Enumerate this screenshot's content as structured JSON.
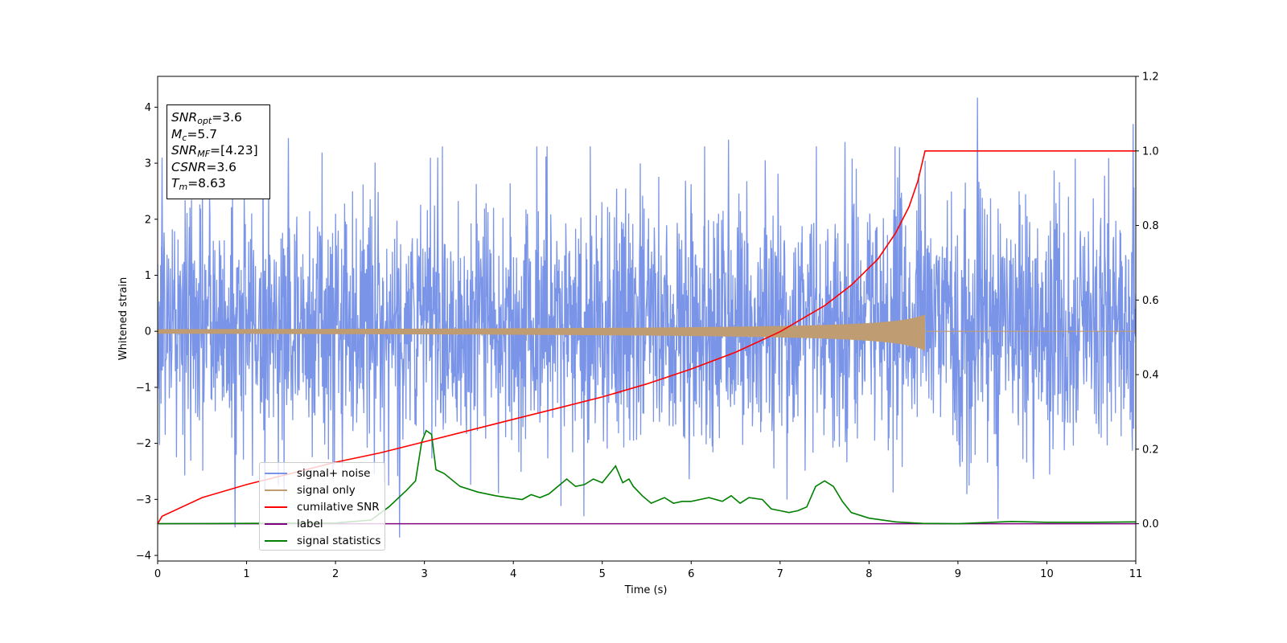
{
  "chart_data": {
    "type": "line",
    "xlabel": "Time (s)",
    "ylabel": "Whitened strain",
    "ylabel_right": "",
    "xlim": [
      0,
      11
    ],
    "ylim": [
      -4.1,
      4.55
    ],
    "ylim_right": [
      -0.1,
      1.2
    ],
    "x_ticks": [
      "0",
      "1",
      "2",
      "3",
      "4",
      "5",
      "6",
      "7",
      "8",
      "9",
      "10",
      "11"
    ],
    "y_ticks": [
      "−4",
      "−3",
      "−2",
      "−1",
      "0",
      "1",
      "2",
      "3",
      "4"
    ],
    "y_ticks_right": [
      "0.0",
      "0.2",
      "0.4",
      "0.6",
      "0.8",
      "1.0",
      "1.2"
    ],
    "grid": false,
    "legend_position": "lower-left",
    "info_box": {
      "snr_opt": {
        "base": "SNR",
        "sub": "opt",
        "value": "=3.6"
      },
      "mc": {
        "base": "M",
        "sub": "c",
        "value": "=5.7"
      },
      "snr_mf": {
        "base": "SNR",
        "sub": "MF",
        "value": "=[4.23]"
      },
      "csnr": {
        "base": "CSNR",
        "value": "=3.6"
      },
      "tm": {
        "base": "T",
        "sub": "m",
        "value": "=8.63"
      }
    },
    "series": [
      {
        "name": "signal+ noise",
        "axis": "left",
        "color": "#7a94e8",
        "kind": "noise",
        "typical_range": [
          -2.1,
          2.4
        ],
        "extremes": [
          [
            0.05,
            3.1
          ],
          [
            1.47,
            3.45
          ],
          [
            2.72,
            -3.68
          ],
          [
            6.42,
            3.42
          ],
          [
            7.73,
            3.38
          ],
          [
            9.22,
            4.17
          ],
          [
            9.45,
            -3.35
          ],
          [
            10.97,
            3.7
          ],
          [
            0.87,
            -3.5
          ],
          [
            3.15,
            3.1
          ]
        ]
      },
      {
        "name": "signal only",
        "axis": "left",
        "color": "#c09c72",
        "kind": "chirp",
        "merger_time": 8.63,
        "peak_amplitude": 0.3
      },
      {
        "name": "cumilative SNR",
        "axis": "right",
        "color": "#ff0000",
        "x": [
          0,
          0.05,
          0.5,
          1,
          1.5,
          2,
          2.5,
          3,
          3.5,
          4,
          4.5,
          5,
          5.5,
          6,
          6.5,
          7,
          7.5,
          7.8,
          8.1,
          8.3,
          8.45,
          8.55,
          8.6,
          8.63,
          9,
          10,
          11
        ],
        "values": [
          0.0,
          0.02,
          0.07,
          0.105,
          0.135,
          0.165,
          0.19,
          0.22,
          0.25,
          0.28,
          0.31,
          0.34,
          0.375,
          0.415,
          0.46,
          0.515,
          0.585,
          0.64,
          0.71,
          0.78,
          0.85,
          0.92,
          0.97,
          1.0,
          1.0,
          1.0,
          1.0
        ]
      },
      {
        "name": "label",
        "axis": "right",
        "color": "#800080",
        "x": [
          0,
          11
        ],
        "values": [
          0.0,
          0.0
        ]
      },
      {
        "name": "signal statistics",
        "axis": "right",
        "color": "#008000",
        "x": [
          0,
          1,
          2,
          2.4,
          2.6,
          2.8,
          2.9,
          2.97,
          3.02,
          3.08,
          3.13,
          3.22,
          3.4,
          3.6,
          3.8,
          4.0,
          4.1,
          4.2,
          4.3,
          4.4,
          4.5,
          4.6,
          4.7,
          4.8,
          4.9,
          5.0,
          5.1,
          5.15,
          5.23,
          5.3,
          5.35,
          5.45,
          5.55,
          5.7,
          5.8,
          5.9,
          6.0,
          6.1,
          6.2,
          6.35,
          6.45,
          6.55,
          6.65,
          6.8,
          6.9,
          7.0,
          7.1,
          7.2,
          7.3,
          7.4,
          7.5,
          7.6,
          7.7,
          7.8,
          8.0,
          8.3,
          8.6,
          9.0,
          9.3,
          9.6,
          10.0,
          10.5,
          11.0
        ],
        "values": [
          0.0,
          0.001,
          0.002,
          0.01,
          0.045,
          0.09,
          0.115,
          0.22,
          0.25,
          0.24,
          0.145,
          0.135,
          0.1,
          0.085,
          0.075,
          0.068,
          0.065,
          0.078,
          0.07,
          0.08,
          0.1,
          0.12,
          0.1,
          0.105,
          0.12,
          0.11,
          0.14,
          0.155,
          0.11,
          0.12,
          0.1,
          0.075,
          0.055,
          0.07,
          0.055,
          0.06,
          0.06,
          0.065,
          0.07,
          0.06,
          0.075,
          0.055,
          0.07,
          0.065,
          0.04,
          0.035,
          0.03,
          0.035,
          0.045,
          0.1,
          0.115,
          0.1,
          0.06,
          0.03,
          0.015,
          0.005,
          0.001,
          0.0,
          0.003,
          0.006,
          0.004,
          0.004,
          0.005
        ]
      }
    ]
  }
}
